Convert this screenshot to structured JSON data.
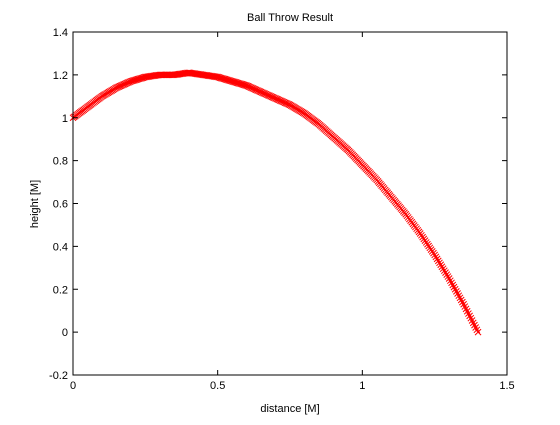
{
  "chart_data": {
    "type": "scatter",
    "title": "Ball Throw Result",
    "xlabel": "distance [M]",
    "ylabel": "height [M]",
    "xlim": [
      0,
      1.5
    ],
    "ylim": [
      -0.2,
      1.4
    ],
    "xticks": [
      0,
      0.5,
      1,
      1.5
    ],
    "xtick_labels": [
      "0",
      "0.5",
      "1",
      "1.5"
    ],
    "yticks": [
      -0.2,
      0,
      0.2,
      0.4,
      0.6,
      0.8,
      1,
      1.2,
      1.4
    ],
    "ytick_labels": [
      "-0.2",
      "0",
      "0.2",
      "0.4",
      "0.6",
      "0.8",
      "1",
      "1.2",
      "1.4"
    ],
    "grid": false,
    "legend": "none",
    "marker": "x",
    "series": [
      {
        "color": "#ff0000",
        "x": [
          0.0,
          0.05,
          0.1,
          0.15,
          0.2,
          0.25,
          0.3,
          0.35,
          0.4,
          0.45,
          0.5,
          0.55,
          0.6,
          0.65,
          0.7,
          0.75,
          0.8,
          0.85,
          0.9,
          0.95,
          1.0,
          1.05,
          1.1,
          1.15,
          1.2,
          1.25,
          1.3,
          1.35,
          1.4
        ],
        "y": [
          1.0,
          1.05,
          1.1,
          1.14,
          1.17,
          1.19,
          1.2,
          1.2,
          1.21,
          1.2,
          1.19,
          1.17,
          1.15,
          1.12,
          1.09,
          1.06,
          1.02,
          0.97,
          0.91,
          0.85,
          0.78,
          0.71,
          0.63,
          0.55,
          0.46,
          0.36,
          0.25,
          0.13,
          0.0
        ]
      }
    ]
  }
}
